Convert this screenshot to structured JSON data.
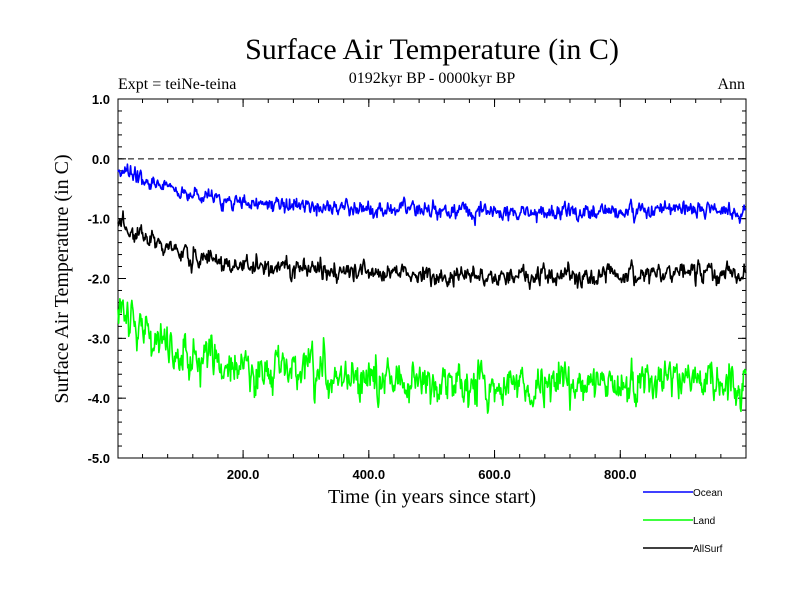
{
  "chart_data": {
    "type": "line",
    "title": "Surface Air Temperature (in C)",
    "subtitle": "0192kyr BP - 0000kyr BP",
    "left_annotation": "Expt = teiNe-teina",
    "right_annotation": "Ann",
    "xlabel": "Time (in years since start)",
    "ylabel": "Surface Air Temperature (in C)",
    "xlim": [
      1,
      1000
    ],
    "ylim": [
      -5.0,
      1.0
    ],
    "x_ticks": [
      200,
      400,
      600,
      800
    ],
    "x_tick_labels": [
      "200.0",
      "400.0",
      "600.0",
      "800.0"
    ],
    "y_ticks": [
      1.0,
      0.0,
      -1.0,
      -2.0,
      -3.0,
      -4.0,
      -5.0
    ],
    "y_tick_labels": [
      "1.0",
      "0.0",
      "-1.0",
      "-2.0",
      "-3.0",
      "-4.0",
      "-5.0"
    ],
    "reference_line": {
      "y": 0.0,
      "style": "dashed"
    },
    "legend_position": "bottom-right",
    "series": [
      {
        "name": "Ocean",
        "color": "#0000ff",
        "x": [
          1,
          25,
          50,
          75,
          100,
          125,
          150,
          175,
          200,
          250,
          300,
          350,
          400,
          450,
          500,
          550,
          600,
          650,
          700,
          750,
          800,
          850,
          900,
          950,
          1000
        ],
        "values": [
          -0.15,
          -0.3,
          -0.4,
          -0.45,
          -0.55,
          -0.6,
          -0.65,
          -0.7,
          -0.72,
          -0.75,
          -0.8,
          -0.82,
          -0.85,
          -0.85,
          -0.88,
          -0.88,
          -0.9,
          -0.9,
          -0.9,
          -0.88,
          -0.88,
          -0.86,
          -0.86,
          -0.85,
          -0.85
        ],
        "noise_amplitude": 0.18
      },
      {
        "name": "Land",
        "color": "#00ff00",
        "x": [
          1,
          25,
          50,
          75,
          100,
          125,
          150,
          175,
          200,
          250,
          300,
          350,
          400,
          450,
          500,
          550,
          600,
          650,
          700,
          750,
          800,
          850,
          900,
          950,
          1000
        ],
        "values": [
          -2.45,
          -2.7,
          -2.9,
          -3.05,
          -3.2,
          -3.35,
          -3.42,
          -3.48,
          -3.5,
          -3.55,
          -3.6,
          -3.65,
          -3.7,
          -3.72,
          -3.75,
          -3.75,
          -3.78,
          -3.78,
          -3.78,
          -3.75,
          -3.75,
          -3.75,
          -3.75,
          -3.72,
          -3.7
        ],
        "noise_amplitude": 0.45
      },
      {
        "name": "AllSurf",
        "color": "#000000",
        "x": [
          1,
          25,
          50,
          75,
          100,
          125,
          150,
          175,
          200,
          250,
          300,
          350,
          400,
          450,
          500,
          550,
          600,
          650,
          700,
          750,
          800,
          850,
          900,
          950,
          1000
        ],
        "values": [
          -1.05,
          -1.2,
          -1.35,
          -1.45,
          -1.55,
          -1.65,
          -1.7,
          -1.75,
          -1.78,
          -1.82,
          -1.85,
          -1.88,
          -1.9,
          -1.9,
          -1.95,
          -1.95,
          -1.97,
          -1.97,
          -1.97,
          -1.95,
          -1.95,
          -1.93,
          -1.93,
          -1.92,
          -1.9
        ],
        "noise_amplitude": 0.22
      }
    ]
  }
}
